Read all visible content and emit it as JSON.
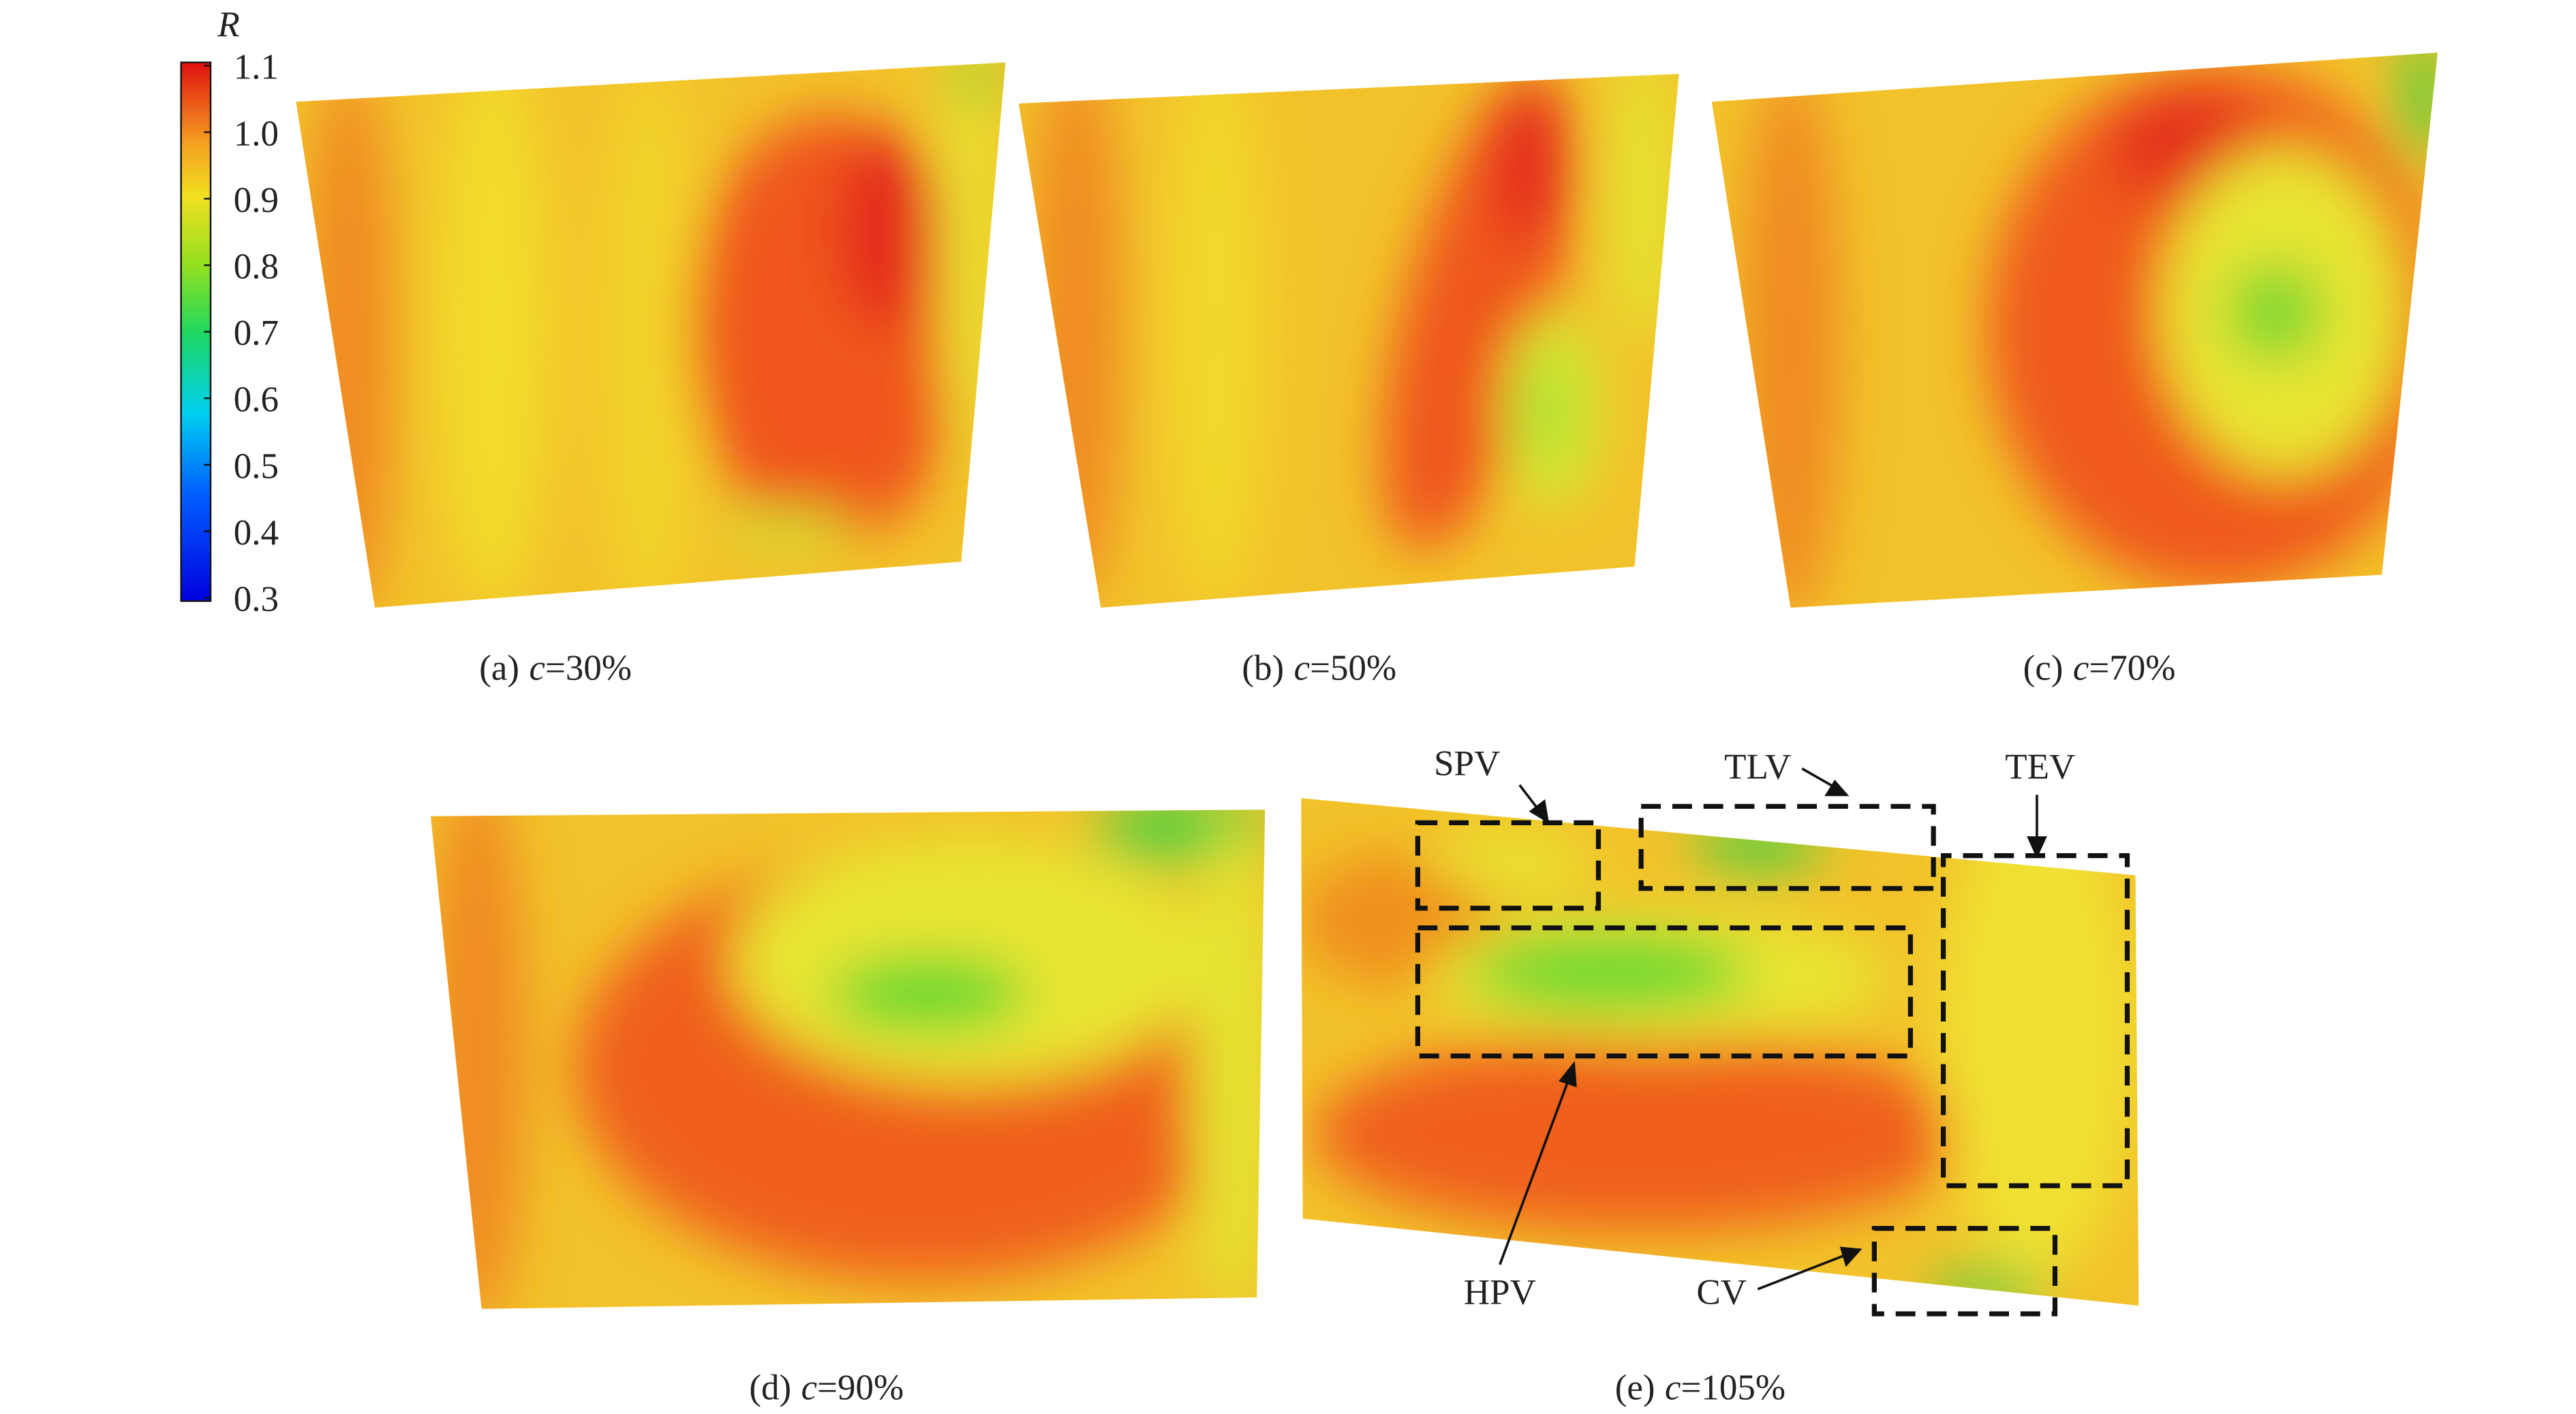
{
  "colorbar": {
    "label": "R",
    "clim": [
      0.3,
      1.1
    ],
    "ticks": [
      1.1,
      {
        "value": 1.0,
        "label": "1.0"
      },
      0.9,
      0.8,
      0.7,
      0.6,
      0.5,
      0.4,
      0.3
    ]
  },
  "panels": [
    {
      "label": "(a)",
      "variable": "c",
      "value": "=30%"
    },
    {
      "label": "(b)",
      "variable": "c",
      "value": "=50%"
    },
    {
      "label": "(c)",
      "variable": "c",
      "value": "=70%"
    },
    {
      "label": "(d)",
      "variable": "c",
      "value": "=90%"
    },
    {
      "label": "(e)",
      "variable": "c",
      "value": "=105%"
    }
  ],
  "annotations": [
    "SPV",
    "TLV",
    "TEV",
    "HPV",
    "CV"
  ]
}
